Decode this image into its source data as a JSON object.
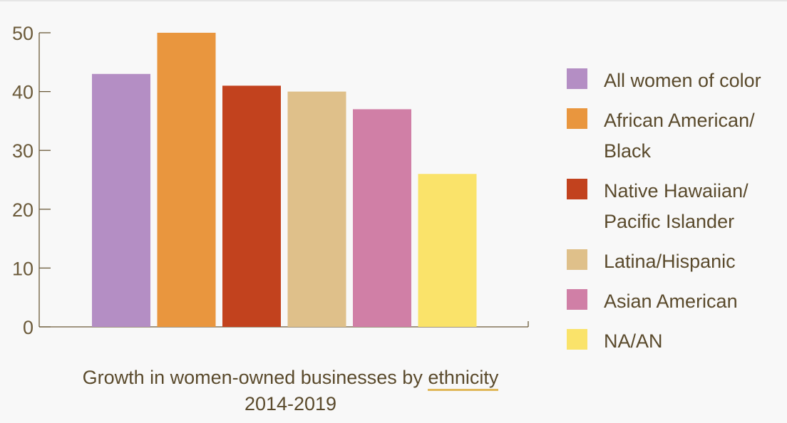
{
  "chart_data": {
    "type": "bar",
    "title": "Growth in women-owned businesses by ethnicity",
    "title_linked_word": "ethnicity",
    "subtitle": "2014-2019",
    "categories": [
      "All women of color",
      "African American/ Black",
      "Native Hawaiian/ Pacific Islander",
      "Latina/Hispanic",
      "Asian American",
      "NA/AN"
    ],
    "values": [
      43,
      50,
      41,
      40,
      37,
      26
    ],
    "colors": [
      "#b48ec4",
      "#e9963e",
      "#c2421e",
      "#dfc08a",
      "#d07fa6",
      "#fae36a"
    ],
    "ylim": [
      0,
      50
    ],
    "yticks": [
      0,
      10,
      20,
      30,
      40,
      50
    ],
    "grid": false,
    "legend_position": "right",
    "legend": [
      {
        "line1": "All women of color",
        "line2": ""
      },
      {
        "line1": "African American/",
        "line2": "Black"
      },
      {
        "line1": "Native Hawaiian/",
        "line2": "Pacific Islander"
      },
      {
        "line1": "Latina/Hispanic",
        "line2": ""
      },
      {
        "line1": "Asian American",
        "line2": ""
      },
      {
        "line1": "NA/AN",
        "line2": ""
      }
    ]
  }
}
